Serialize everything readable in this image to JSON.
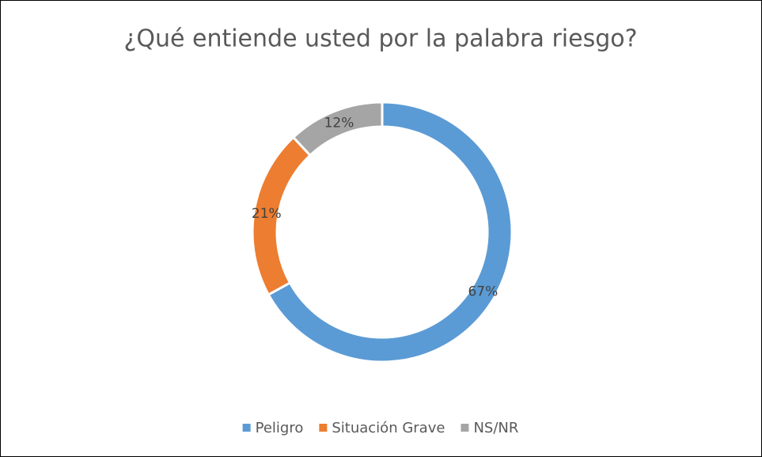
{
  "chart_data": {
    "type": "donut",
    "title": "¿Qué entiende usted por la palabra riesgo?",
    "categories": [
      "Peligro",
      "Situación Grave",
      "NS/NR"
    ],
    "values": [
      67,
      21,
      12
    ],
    "value_labels": [
      "67%",
      "21%",
      "12%"
    ],
    "colors": [
      "#5b9bd5",
      "#ed7d31",
      "#a5a5a5"
    ],
    "legend": "bottom"
  }
}
